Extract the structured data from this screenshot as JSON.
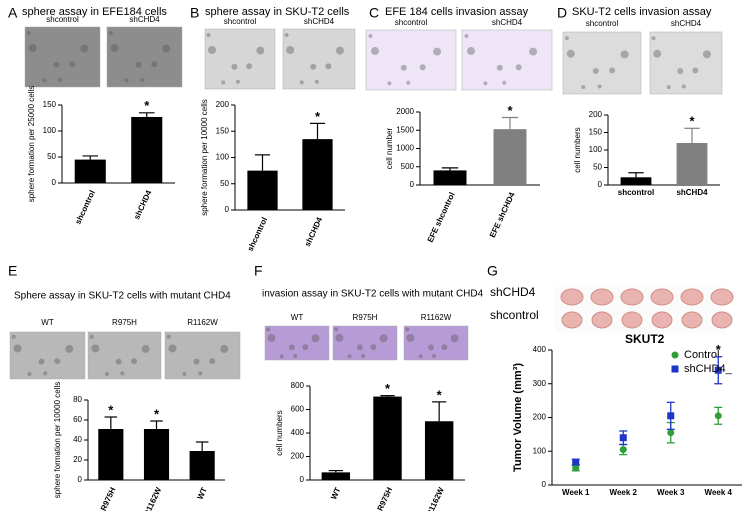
{
  "chart_data": [
    {
      "type": "bar",
      "panel": "A",
      "title": "sphere assay in EFE184 cells",
      "image_labels": [
        "shcontrol",
        "shCHD4"
      ],
      "ylabel": "sphere formation per 25000 cells",
      "categories": [
        "shcontrol",
        "shCHD4"
      ],
      "values": [
        45,
        127
      ],
      "errors": [
        7,
        8
      ],
      "colors": [
        "#000000",
        "#000000"
      ],
      "significance": [
        null,
        "*"
      ],
      "ylim": [
        0,
        150
      ],
      "yticks": [
        0,
        50,
        100,
        150
      ]
    },
    {
      "type": "bar",
      "panel": "B",
      "title": "sphere assay in SKU-T2 cells",
      "image_labels": [
        "shcontrol",
        "shCHD4"
      ],
      "ylabel": "sphere formation per 10000 cells",
      "categories": [
        "shcontrol",
        "shCHD4"
      ],
      "values": [
        75,
        135
      ],
      "errors": [
        30,
        30
      ],
      "colors": [
        "#000000",
        "#000000"
      ],
      "significance": [
        null,
        "*"
      ],
      "ylim": [
        0,
        200
      ],
      "yticks": [
        0,
        50,
        100,
        150,
        200
      ]
    },
    {
      "type": "bar",
      "panel": "C",
      "title": "EFE 184 cells invasion assay",
      "image_labels": [
        "shcontrol",
        "shCHD4"
      ],
      "ylabel": "cell number",
      "categories": [
        "EFE shcontrol",
        "EFE shCHD4"
      ],
      "values": [
        400,
        1530
      ],
      "errors": [
        70,
        320
      ],
      "colors": [
        "#000000",
        "#808080"
      ],
      "significance": [
        null,
        "*"
      ],
      "ylim": [
        0,
        2000
      ],
      "yticks": [
        0,
        500,
        1000,
        1500,
        2000
      ]
    },
    {
      "type": "bar",
      "panel": "D",
      "title": "SKU-T2  cells invasion assay",
      "image_labels": [
        "shcontrol",
        "shCHD4"
      ],
      "ylabel": "cell numbers",
      "categories": [
        "shcontrol",
        "shCHD4"
      ],
      "values": [
        22,
        120
      ],
      "errors": [
        13,
        42
      ],
      "colors": [
        "#000000",
        "#808080"
      ],
      "significance": [
        null,
        "*"
      ],
      "ylim": [
        0,
        200
      ],
      "yticks": [
        0,
        50,
        100,
        150,
        200
      ]
    },
    {
      "type": "bar",
      "panel": "E",
      "title": "Sphere assay in SKU-T2 cells with mutant CHD4",
      "image_labels": [
        "WT",
        "R975H",
        "R1162W"
      ],
      "ylabel": "sphere formation per 10000 cells",
      "categories": [
        "R975H",
        "R1162W",
        "WT"
      ],
      "values": [
        51,
        51,
        29
      ],
      "errors": [
        12,
        8,
        9
      ],
      "colors": [
        "#000000",
        "#000000",
        "#000000"
      ],
      "significance": [
        "*",
        "*",
        null
      ],
      "ylim": [
        0,
        80
      ],
      "yticks": [
        0,
        20,
        40,
        60,
        80
      ]
    },
    {
      "type": "bar",
      "panel": "F",
      "title": "invasion assay in SKU-T2 cells with mutant CHD4",
      "image_labels": [
        "WT",
        "R975H",
        "R1162W"
      ],
      "ylabel": "cell numbers",
      "categories": [
        "WT",
        "R975H",
        "R1162W"
      ],
      "values": [
        65,
        710,
        500
      ],
      "errors": [
        15,
        8,
        165
      ],
      "colors": [
        "#000000",
        "#000000",
        "#000000"
      ],
      "significance": [
        null,
        "*",
        "*"
      ],
      "ylim": [
        0,
        800
      ],
      "yticks": [
        0,
        200,
        400,
        600,
        800
      ]
    },
    {
      "type": "scatter",
      "panel": "G",
      "title": "SKUT2",
      "image_labels": [
        "shCHD4",
        "shcontrol"
      ],
      "ylabel": "Tumor Volume (mm³)",
      "categories": [
        "Week 1",
        "Week 2",
        "Week 3",
        "Week 4"
      ],
      "series": [
        {
          "name": "Control",
          "color": "#2e9e3a",
          "marker": "circle",
          "values": [
            50,
            105,
            155,
            205
          ],
          "errors": [
            8,
            15,
            30,
            25
          ]
        },
        {
          "name": "shCHD4_",
          "color": "#1f35c9",
          "marker": "square",
          "values": [
            68,
            140,
            205,
            340
          ],
          "errors": [
            8,
            20,
            40,
            40
          ]
        }
      ],
      "significance": [
        null,
        null,
        null,
        "*"
      ],
      "ylim": [
        0,
        400
      ],
      "yticks": [
        0,
        100,
        200,
        300,
        400
      ]
    }
  ]
}
